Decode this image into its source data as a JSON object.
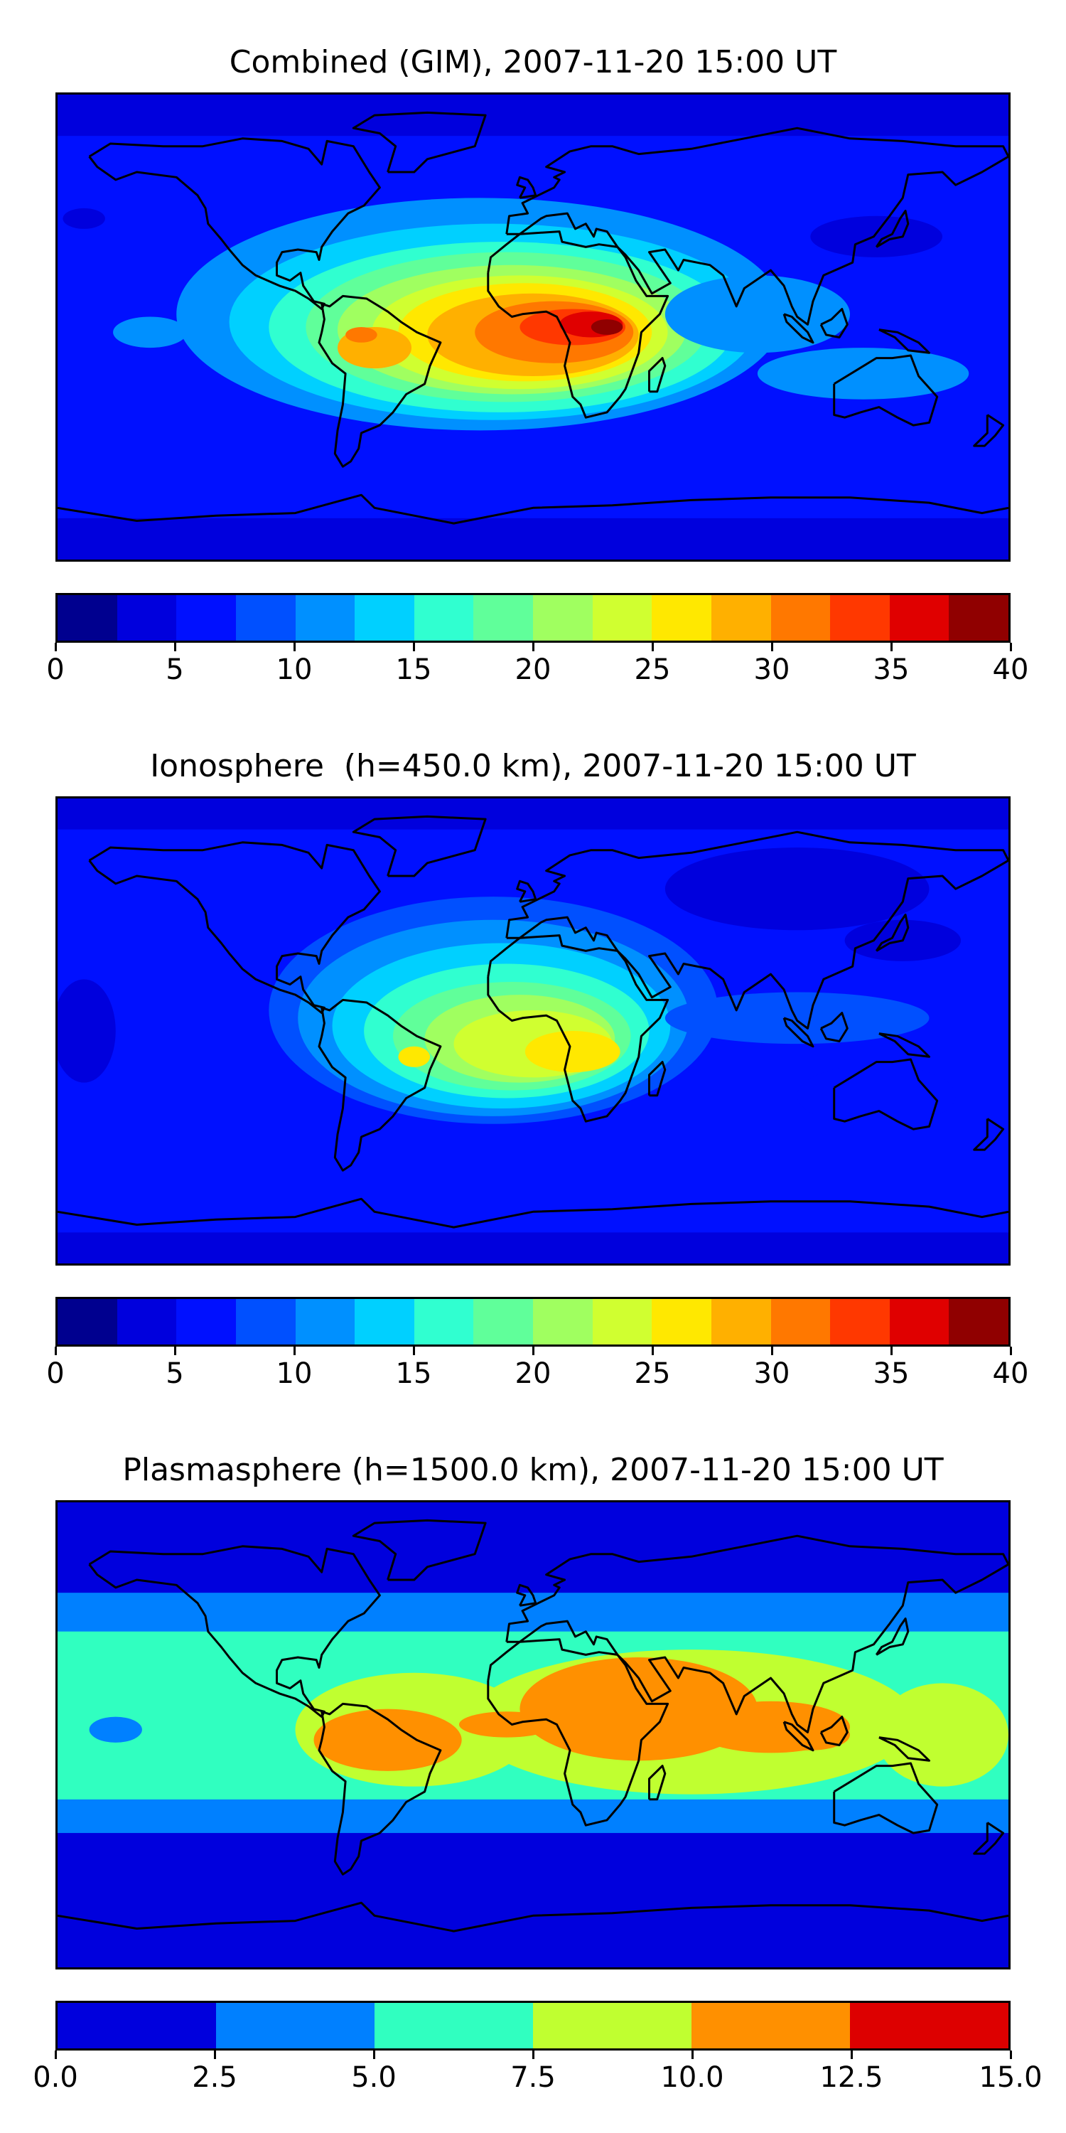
{
  "panels": [
    {
      "title": "Combined (GIM), 2007-11-20 15:00 UT",
      "colorbar": {
        "ticks": [
          "0",
          "5",
          "10",
          "15",
          "20",
          "25",
          "30",
          "35",
          "40"
        ],
        "levels": 16,
        "colors": [
          "#00008f",
          "#0000dd",
          "#0010ff",
          "#0050ff",
          "#0090ff",
          "#00d0ff",
          "#30ffd0",
          "#60ff9a",
          "#a0ff60",
          "#d0ff30",
          "#ffe800",
          "#ffb000",
          "#ff7800",
          "#ff3800",
          "#e00000",
          "#900000"
        ]
      }
    },
    {
      "title": "Ionosphere  (h=450.0 km), 2007-11-20 15:00 UT",
      "colorbar": {
        "ticks": [
          "0",
          "5",
          "10",
          "15",
          "20",
          "25",
          "30",
          "35",
          "40"
        ],
        "levels": 16,
        "colors": [
          "#00008f",
          "#0000dd",
          "#0010ff",
          "#0050ff",
          "#0090ff",
          "#00d0ff",
          "#30ffd0",
          "#60ff9a",
          "#a0ff60",
          "#d0ff30",
          "#ffe800",
          "#ffb000",
          "#ff7800",
          "#ff3800",
          "#e00000",
          "#900000"
        ]
      }
    },
    {
      "title": "Plasmasphere (h=1500.0 km), 2007-11-20 15:00 UT",
      "colorbar": {
        "ticks": [
          "0.0",
          "2.5",
          "5.0",
          "7.5",
          "10.0",
          "12.5",
          "15.0"
        ],
        "levels": 6,
        "colors": [
          "#0000dd",
          "#0080ff",
          "#30ffc0",
          "#c0ff30",
          "#ff9000",
          "#dd0000"
        ]
      }
    }
  ],
  "chart_data": [
    {
      "type": "heatmap",
      "title": "Combined (GIM), 2007-11-20 15:00 UT",
      "colorbar_range": [
        0,
        40
      ],
      "contour_levels": [
        0,
        2.5,
        5,
        7.5,
        10,
        12.5,
        15,
        17.5,
        20,
        22.5,
        25,
        27.5,
        30,
        32.5,
        35,
        37.5,
        40
      ],
      "features": [
        {
          "region": "central Africa",
          "level": 37.5
        },
        {
          "region": "equatorial Atlantic / Africa",
          "level": 32.5
        },
        {
          "region": "South America",
          "level": 30
        },
        {
          "region": "polar regions",
          "level": 2.5
        }
      ]
    },
    {
      "type": "heatmap",
      "title": "Ionosphere  (h=450.0 km), 2007-11-20 15:00 UT",
      "colorbar_range": [
        0,
        40
      ],
      "contour_levels": [
        0,
        2.5,
        5,
        7.5,
        10,
        12.5,
        15,
        17.5,
        20,
        22.5,
        25,
        27.5,
        30,
        32.5,
        35,
        37.5,
        40
      ],
      "features": [
        {
          "region": "southern Africa",
          "level": 25
        },
        {
          "region": "South America",
          "level": 25
        },
        {
          "region": "Atlantic",
          "level": 20
        },
        {
          "region": "polar regions",
          "level": 2.5
        }
      ]
    },
    {
      "type": "heatmap",
      "title": "Plasmasphere (h=1500.0 km), 2007-11-20 15:00 UT",
      "colorbar_range": [
        0.0,
        15.0
      ],
      "contour_levels": [
        0,
        2.5,
        5,
        7.5,
        10,
        12.5,
        15
      ],
      "features": [
        {
          "region": "North Africa to Southeast Asia",
          "level": 10
        },
        {
          "region": "South America",
          "level": 10
        },
        {
          "region": "tropical band",
          "level": 7.5
        },
        {
          "region": "mid latitudes",
          "level": 5
        },
        {
          "region": "polar regions",
          "level": 2.5
        }
      ]
    }
  ]
}
